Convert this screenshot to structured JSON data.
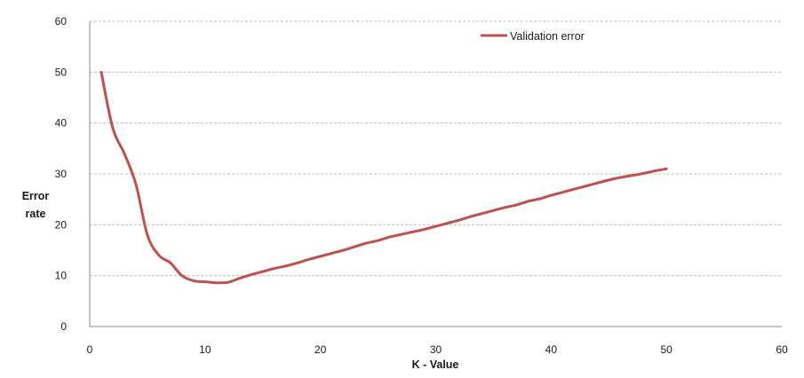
{
  "chart_data": {
    "type": "line",
    "xlabel": "K - Value",
    "ylabel_lines": [
      "Error",
      "rate"
    ],
    "xlim": [
      0,
      60
    ],
    "ylim": [
      0,
      60
    ],
    "x_ticks": [
      "0",
      "10",
      "20",
      "30",
      "40",
      "50",
      "60"
    ],
    "y_ticks": [
      "0",
      "10",
      "20",
      "30",
      "40",
      "50",
      "60"
    ],
    "grid": {
      "horizontal": true,
      "style": "dashed"
    },
    "legend": {
      "position": "top-right"
    },
    "series": [
      {
        "name": "Validation error",
        "color": "#c0504d",
        "x": [
          1,
          2,
          3,
          4,
          5,
          6,
          7,
          8,
          9,
          10,
          11,
          12,
          13,
          14,
          15,
          16,
          17,
          18,
          19,
          20,
          21,
          22,
          23,
          24,
          25,
          26,
          27,
          28,
          29,
          30,
          31,
          32,
          33,
          34,
          35,
          36,
          37,
          38,
          39,
          40,
          41,
          42,
          43,
          44,
          45,
          46,
          47,
          48,
          49,
          50
        ],
        "values": [
          50,
          39,
          34,
          28,
          18,
          14,
          12.5,
          10,
          9,
          8.8,
          8.6,
          8.7,
          9.5,
          10.2,
          10.8,
          11.4,
          11.9,
          12.5,
          13.2,
          13.8,
          14.4,
          15,
          15.7,
          16.4,
          16.9,
          17.6,
          18.1,
          18.6,
          19.1,
          19.7,
          20.3,
          20.9,
          21.6,
          22.2,
          22.8,
          23.4,
          23.9,
          24.6,
          25.1,
          25.8,
          26.4,
          27,
          27.6,
          28.2,
          28.8,
          29.3,
          29.7,
          30.1,
          30.6,
          31
        ]
      }
    ]
  }
}
